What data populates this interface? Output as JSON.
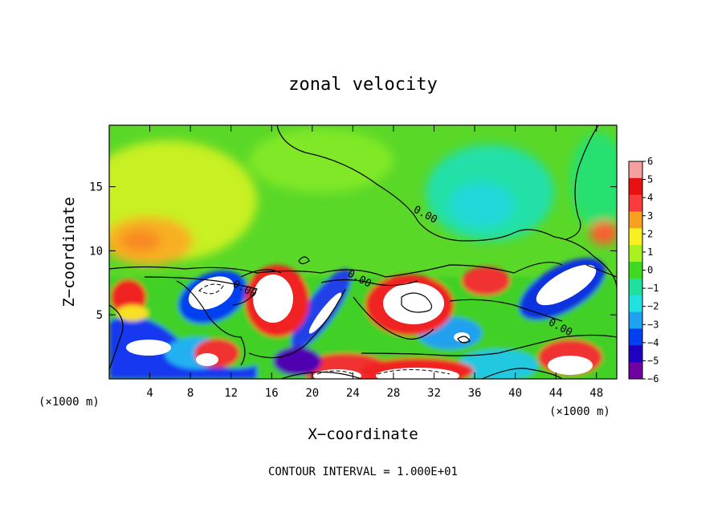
{
  "chart_data": {
    "type": "heatmap",
    "title": "zonal velocity",
    "xlabel": "X−coordinate",
    "ylabel": "Z−coordinate",
    "x_unit_left": "(×1000 m)",
    "x_unit_right": "(×1000 m)",
    "xlim": [
      0,
      50
    ],
    "ylim": [
      0,
      19.8
    ],
    "xticks": [
      4,
      8,
      12,
      16,
      20,
      24,
      28,
      32,
      36,
      40,
      44,
      48
    ],
    "yticks": [
      5,
      10,
      15
    ],
    "colorbar": {
      "levels": [
        6,
        5,
        4,
        3,
        2,
        1,
        0,
        -1,
        -2,
        -3,
        -4,
        -5,
        -6
      ],
      "labels": [
        "6",
        "5",
        "4",
        "3",
        "2",
        "1",
        "0",
        "−1",
        "−2",
        "−3",
        "−4",
        "−5",
        "−6"
      ],
      "colors": [
        "#f4a0a0",
        "#e81010",
        "#f83c3c",
        "#f8a020",
        "#f8f020",
        "#a8f020",
        "#40d820",
        "#20e0a0",
        "#20e0e0",
        "#20a0f0",
        "#0040f0",
        "#2000c0",
        "#7000a0"
      ]
    },
    "contour_labels": [
      {
        "text": "0.00",
        "x": 31,
        "y": 12.6
      },
      {
        "text": "0.00",
        "x": 24.5,
        "y": 7.6
      },
      {
        "text": "0.00",
        "x": 13.2,
        "y": 6.8
      },
      {
        "text": "0.00",
        "x": 44.3,
        "y": 3.8
      }
    ],
    "footer": "CONTOUR INTERVAL = 1.000E+01"
  }
}
